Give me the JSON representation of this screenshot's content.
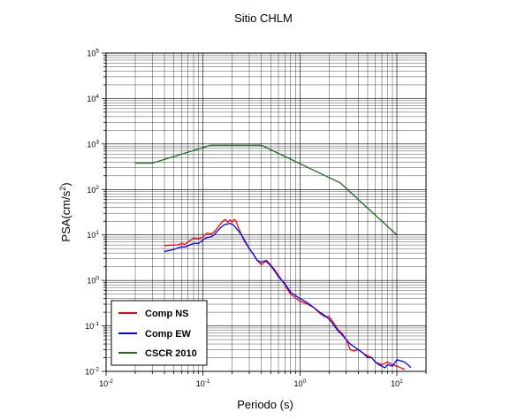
{
  "chart_data": {
    "type": "line",
    "title": "Sitio CHLM",
    "xlabel": "Periodo (s)",
    "ylabel_base": "PSA(cm/s",
    "ylabel_exp": "2",
    "ylabel_close": ")",
    "x_scale": "log",
    "y_scale": "log",
    "xlim": [
      0.01,
      20
    ],
    "ylim": [
      0.01,
      100000
    ],
    "grid": true,
    "legend_position": "bottom-left",
    "x_ticks": [
      {
        "value": 0.01,
        "base": "10",
        "exp": "-2"
      },
      {
        "value": 0.1,
        "base": "10",
        "exp": "-1"
      },
      {
        "value": 1,
        "base": "10",
        "exp": "0"
      },
      {
        "value": 10,
        "base": "10",
        "exp": "1"
      }
    ],
    "y_ticks": [
      {
        "value": 0.01,
        "base": "10",
        "exp": "-2"
      },
      {
        "value": 0.1,
        "base": "10",
        "exp": "-1"
      },
      {
        "value": 1,
        "base": "10",
        "exp": "0"
      },
      {
        "value": 10,
        "base": "10",
        "exp": "1"
      },
      {
        "value": 100,
        "base": "10",
        "exp": "2"
      },
      {
        "value": 1000,
        "base": "10",
        "exp": "3"
      },
      {
        "value": 10000,
        "base": "10",
        "exp": "4"
      },
      {
        "value": 100000,
        "base": "10",
        "exp": "5"
      }
    ],
    "series": [
      {
        "name": "Comp NS",
        "color": "#ff0000",
        "x": [
          0.04,
          0.05,
          0.055,
          0.06,
          0.065,
          0.07,
          0.08,
          0.09,
          0.1,
          0.11,
          0.12,
          0.13,
          0.14,
          0.15,
          0.16,
          0.17,
          0.18,
          0.19,
          0.2,
          0.21,
          0.22,
          0.23,
          0.25,
          0.27,
          0.3,
          0.33,
          0.36,
          0.4,
          0.43,
          0.45,
          0.5,
          0.55,
          0.6,
          0.7,
          0.8,
          1.0,
          1.2,
          1.4,
          1.6,
          1.8,
          2.0,
          2.2,
          2.5,
          2.7,
          3.0,
          3.3,
          3.6,
          4.0,
          4.5,
          5.0,
          5.5,
          6.0,
          6.5,
          7.0,
          7.5,
          8.0,
          9.0,
          10.0,
          11.0,
          12.0
        ],
        "y": [
          5.8,
          6.0,
          6.0,
          6.5,
          6.2,
          7.0,
          8.5,
          8.2,
          9.0,
          11.0,
          10.5,
          11.5,
          14.0,
          17.0,
          20.0,
          22.0,
          19.0,
          21.5,
          19.0,
          22.0,
          20.0,
          15.0,
          10.0,
          7.0,
          5.0,
          3.8,
          2.8,
          2.2,
          2.5,
          2.8,
          2.2,
          1.7,
          1.3,
          0.8,
          0.5,
          0.35,
          0.3,
          0.25,
          0.19,
          0.16,
          0.16,
          0.12,
          0.08,
          0.07,
          0.05,
          0.03,
          0.028,
          0.03,
          0.025,
          0.022,
          0.02,
          0.016,
          0.015,
          0.014,
          0.015,
          0.016,
          0.014,
          0.013,
          0.012,
          0.011
        ]
      },
      {
        "name": "Comp EW",
        "color": "#0000ff",
        "x": [
          0.04,
          0.05,
          0.055,
          0.06,
          0.065,
          0.07,
          0.08,
          0.09,
          0.1,
          0.11,
          0.12,
          0.13,
          0.14,
          0.15,
          0.16,
          0.17,
          0.18,
          0.19,
          0.2,
          0.21,
          0.22,
          0.23,
          0.25,
          0.27,
          0.3,
          0.33,
          0.36,
          0.4,
          0.43,
          0.45,
          0.5,
          0.55,
          0.6,
          0.7,
          0.8,
          1.0,
          1.2,
          1.4,
          1.6,
          1.8,
          2.0,
          2.2,
          2.5,
          2.7,
          3.0,
          3.3,
          3.6,
          4.0,
          4.5,
          5.0,
          5.5,
          6.0,
          6.5,
          7.0,
          7.5,
          8.0,
          9.0,
          10.0,
          11.0,
          12.0,
          13.0,
          14.0
        ],
        "y": [
          4.3,
          4.8,
          5.2,
          5.5,
          5.4,
          5.8,
          6.5,
          6.5,
          7.8,
          8.8,
          9.0,
          10.0,
          12.0,
          14.0,
          16.0,
          17.0,
          17.5,
          18.0,
          17.0,
          16.0,
          14.0,
          12.5,
          10.0,
          7.5,
          5.0,
          3.8,
          2.8,
          2.5,
          2.7,
          2.6,
          2.1,
          1.6,
          1.2,
          0.85,
          0.55,
          0.4,
          0.32,
          0.25,
          0.2,
          0.17,
          0.14,
          0.11,
          0.075,
          0.065,
          0.05,
          0.04,
          0.035,
          0.03,
          0.025,
          0.02,
          0.02,
          0.016,
          0.014,
          0.013,
          0.012,
          0.014,
          0.013,
          0.018,
          0.017,
          0.016,
          0.014,
          0.012
        ]
      },
      {
        "name": "CSCR 2010",
        "color": "#1e6e1e",
        "x": [
          0.02,
          0.03,
          0.12,
          0.4,
          2.6,
          10
        ],
        "y": [
          380,
          380,
          940,
          940,
          140,
          10
        ]
      }
    ]
  }
}
